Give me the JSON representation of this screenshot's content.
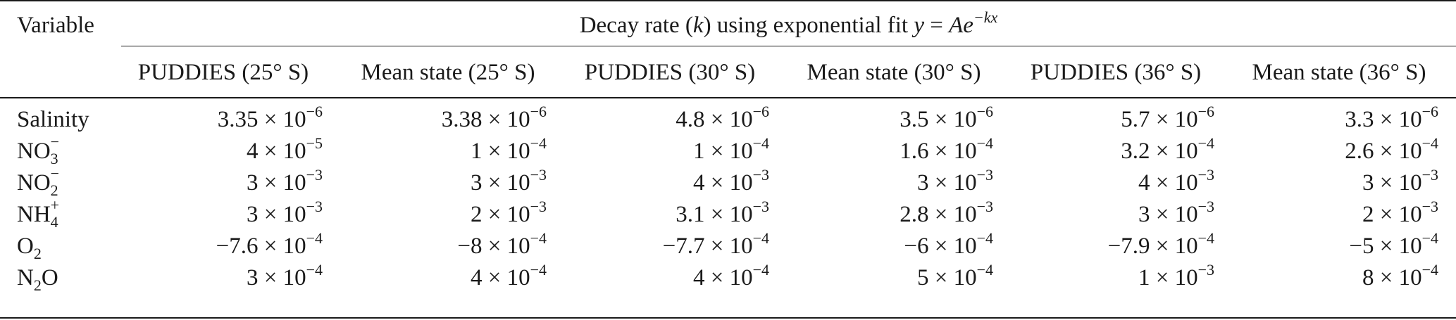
{
  "table": {
    "header": {
      "variable": "Variable",
      "group_prefix": "Decay rate (",
      "group_k": "k",
      "group_mid": ") using exponential fit ",
      "group_y": "y",
      "group_eq": " = ",
      "group_A": "Ae",
      "group_exp": "−kx"
    },
    "columns": [
      "PUDDIES (25° S)",
      "Mean state (25° S)",
      "PUDDIES (30° S)",
      "Mean state (30° S)",
      "PUDDIES (36° S)",
      "Mean state (36° S)"
    ],
    "rows": [
      {
        "label": "Salinity",
        "values": [
          {
            "mant": "3.35",
            "exp": "−6"
          },
          {
            "mant": "3.38",
            "exp": "−6"
          },
          {
            "mant": "4.8",
            "exp": "−6"
          },
          {
            "mant": "3.5",
            "exp": "−6"
          },
          {
            "mant": "5.7",
            "exp": "−6"
          },
          {
            "mant": "3.3",
            "exp": "−6"
          }
        ]
      },
      {
        "label_base": "NO",
        "label_sub": "3",
        "label_sup": "−",
        "values": [
          {
            "mant": "4",
            "exp": "−5"
          },
          {
            "mant": "1",
            "exp": "−4"
          },
          {
            "mant": "1",
            "exp": "−4"
          },
          {
            "mant": "1.6",
            "exp": "−4"
          },
          {
            "mant": "3.2",
            "exp": "−4"
          },
          {
            "mant": "2.6",
            "exp": "−4"
          }
        ]
      },
      {
        "label_base": "NO",
        "label_sub": "2",
        "label_sup": "−",
        "values": [
          {
            "mant": "3",
            "exp": "−3"
          },
          {
            "mant": "3",
            "exp": "−3"
          },
          {
            "mant": "4",
            "exp": "−3"
          },
          {
            "mant": "3",
            "exp": "−3"
          },
          {
            "mant": "4",
            "exp": "−3"
          },
          {
            "mant": "3",
            "exp": "−3"
          }
        ]
      },
      {
        "label_base": "NH",
        "label_sub": "4",
        "label_sup": "+",
        "values": [
          {
            "mant": "3",
            "exp": "−3"
          },
          {
            "mant": "2",
            "exp": "−3"
          },
          {
            "mant": "3.1",
            "exp": "−3"
          },
          {
            "mant": "2.8",
            "exp": "−3"
          },
          {
            "mant": "3",
            "exp": "−3"
          },
          {
            "mant": "2",
            "exp": "−3"
          }
        ]
      },
      {
        "label_base": "O",
        "label_sub": "2",
        "values": [
          {
            "mant": "−7.6",
            "exp": "−4"
          },
          {
            "mant": "−8",
            "exp": "−4"
          },
          {
            "mant": "−7.7",
            "exp": "−4"
          },
          {
            "mant": "−6",
            "exp": "−4"
          },
          {
            "mant": "−7.9",
            "exp": "−4"
          },
          {
            "mant": "−5",
            "exp": "−4"
          }
        ]
      },
      {
        "label_base": "N",
        "label_sub": "2",
        "label_tail": "O",
        "values": [
          {
            "mant": "3",
            "exp": "−4"
          },
          {
            "mant": "4",
            "exp": "−4"
          },
          {
            "mant": "4",
            "exp": "−4"
          },
          {
            "mant": "5",
            "exp": "−4"
          },
          {
            "mant": "1",
            "exp": "−3"
          },
          {
            "mant": "8",
            "exp": "−4"
          }
        ]
      }
    ],
    "times_symbol": "×",
    "base": "10"
  }
}
